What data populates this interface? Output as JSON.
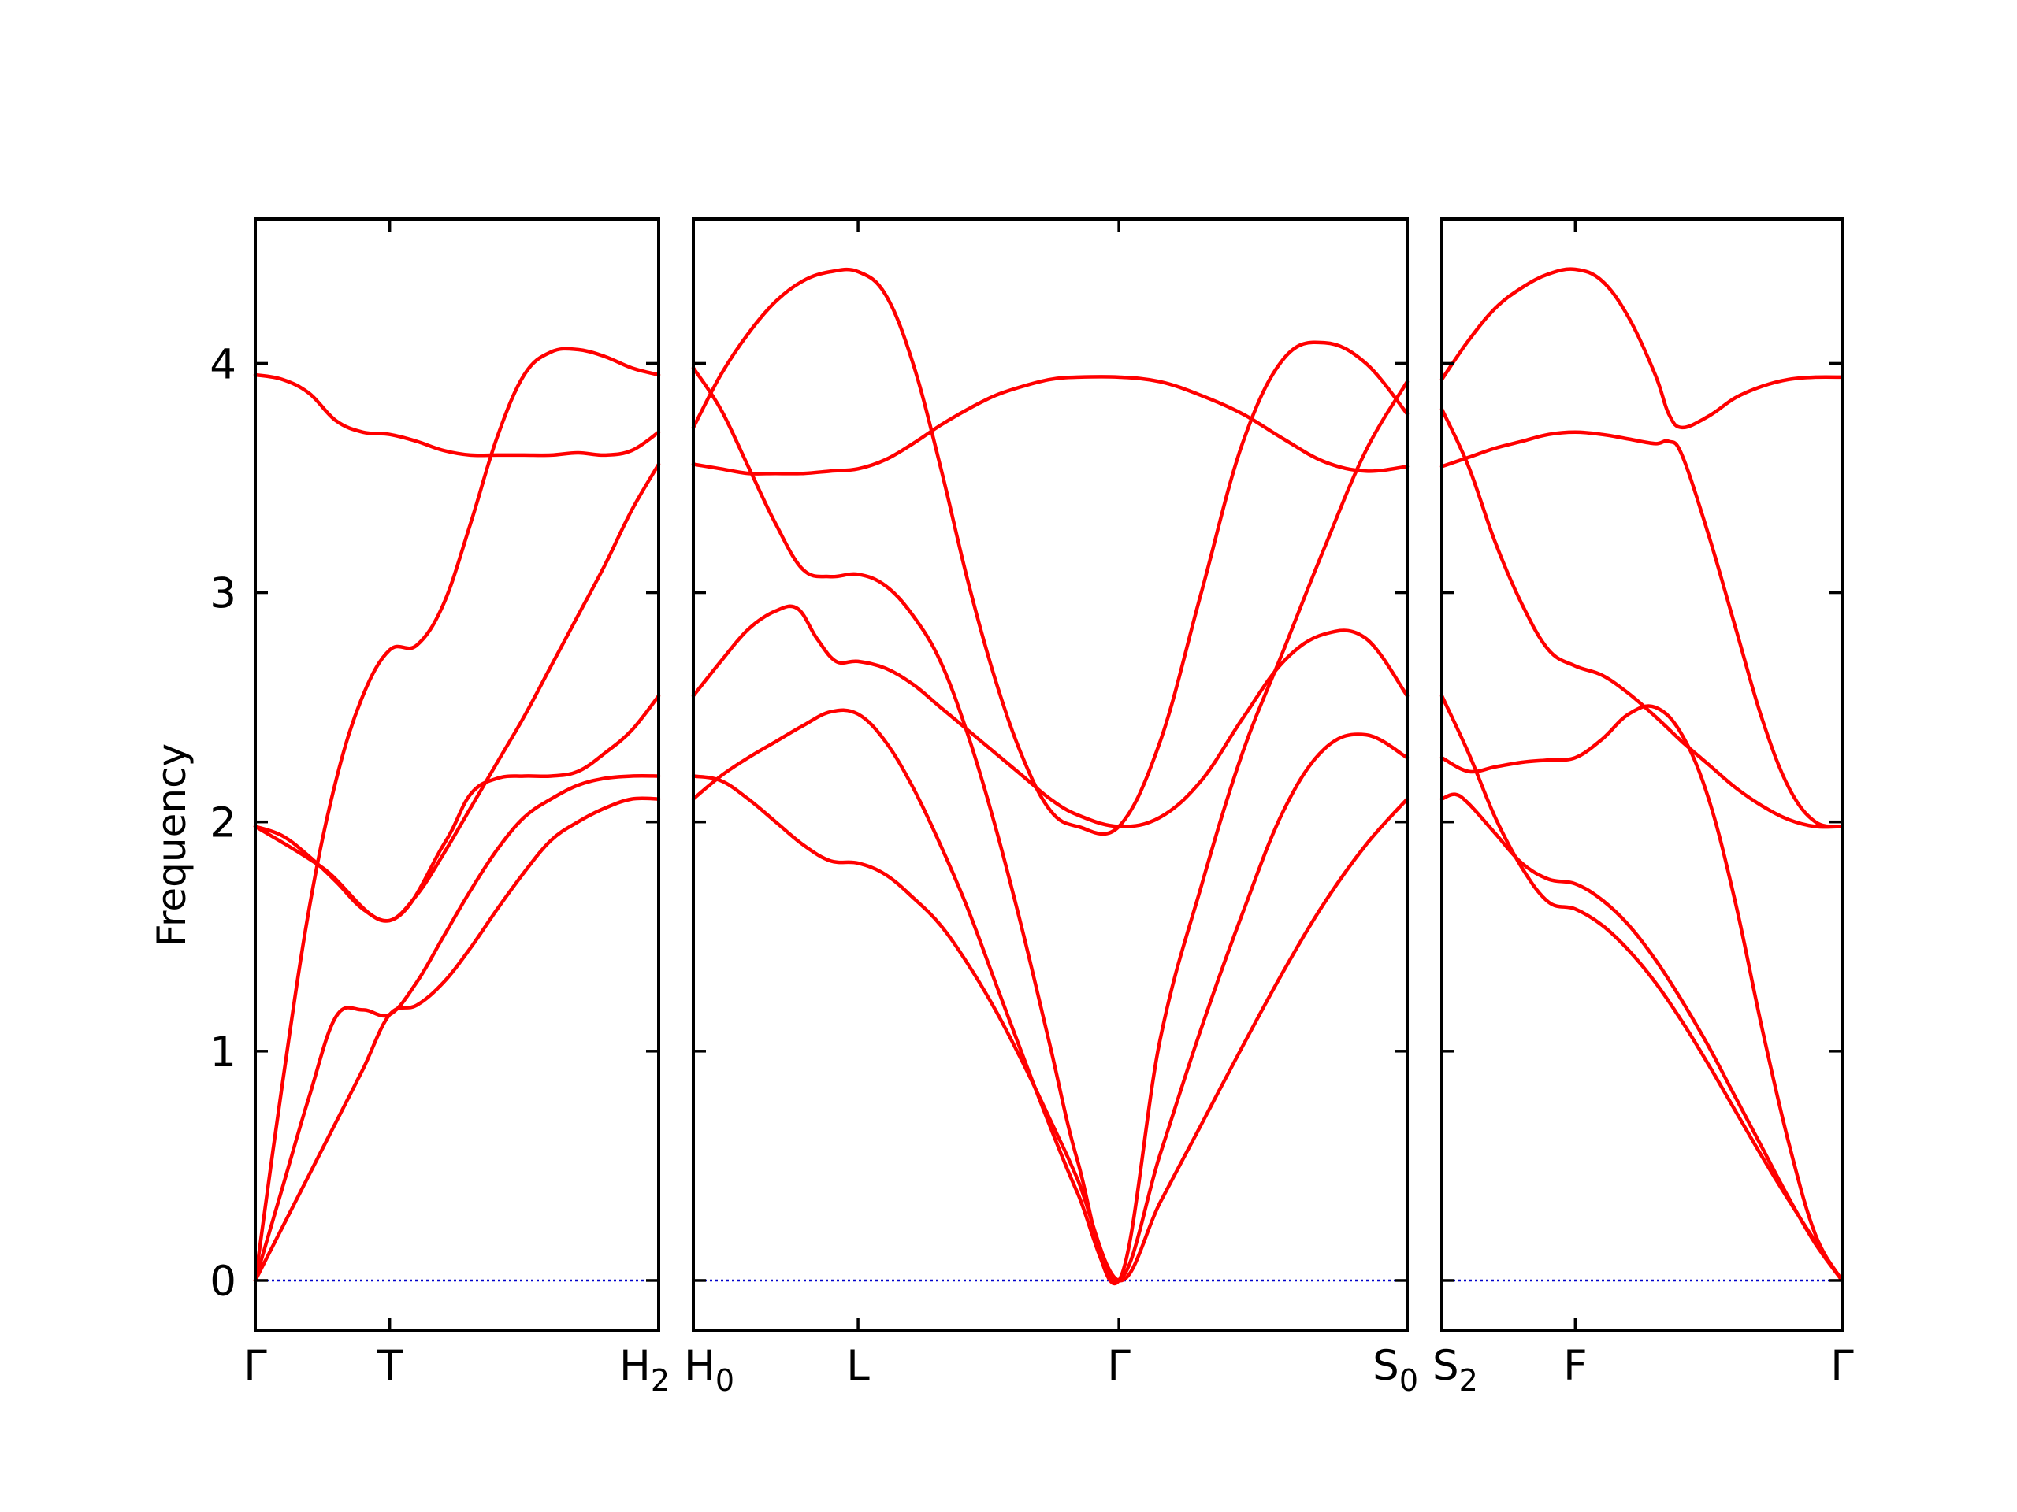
{
  "chart_data": {
    "type": "line",
    "ylabel": "Frequency",
    "ylim": [
      -0.22,
      4.63
    ],
    "yticks": [
      0,
      1,
      2,
      3,
      4
    ],
    "grid": false,
    "line_color": "#ff0000",
    "zero_line_color": "#0000cc",
    "panels": [
      {
        "name": "panel-1",
        "x_range": [
          0,
          1.5
        ],
        "xticks": [
          {
            "x": 0,
            "label": "Γ"
          },
          {
            "x": 0.5,
            "label": "T"
          },
          {
            "x": 1.5,
            "label": "H",
            "sub": "2"
          }
        ],
        "series": [
          {
            "x": [
              0,
              0.1,
              0.2,
              0.3,
              0.4,
              0.5,
              0.6,
              0.7,
              0.8,
              0.9,
              1.0,
              1.1,
              1.2,
              1.3,
              1.4,
              1.5
            ],
            "y": [
              0,
              0.23,
              0.46,
              0.69,
              0.92,
              1.16,
              1.2,
              1.3,
              1.45,
              1.62,
              1.78,
              1.92,
              2.0,
              2.06,
              2.1,
              2.1
            ]
          },
          {
            "x": [
              0,
              0.1,
              0.2,
              0.3,
              0.4,
              0.5,
              0.6,
              0.7,
              0.8,
              0.9,
              1.0,
              1.1,
              1.2,
              1.3,
              1.4,
              1.5
            ],
            "y": [
              0,
              0.4,
              0.8,
              1.15,
              1.18,
              1.16,
              1.3,
              1.5,
              1.7,
              1.88,
              2.02,
              2.1,
              2.16,
              2.19,
              2.2,
              2.2
            ]
          },
          {
            "x": [
              0,
              0.1,
              0.2,
              0.3,
              0.4,
              0.5,
              0.6,
              0.7,
              0.8,
              0.9,
              1.0,
              1.1,
              1.2,
              1.3,
              1.4,
              1.5
            ],
            "y": [
              1.98,
              1.94,
              1.85,
              1.74,
              1.62,
              1.57,
              1.68,
              1.86,
              2.06,
              2.26,
              2.46,
              2.68,
              2.9,
              3.12,
              3.36,
              3.56
            ]
          },
          {
            "x": [
              0,
              0.1,
              0.2,
              0.3,
              0.4,
              0.5,
              0.6,
              0.7,
              0.8,
              0.9,
              1.0,
              1.1,
              1.2,
              1.3,
              1.4,
              1.5
            ],
            "y": [
              0,
              0.85,
              1.62,
              2.18,
              2.55,
              2.75,
              2.77,
              2.95,
              3.3,
              3.68,
              3.95,
              4.05,
              4.06,
              4.03,
              3.98,
              3.95
            ]
          },
          {
            "x": [
              0,
              0.1,
              0.2,
              0.3,
              0.4,
              0.5,
              0.6,
              0.7,
              0.8,
              0.9,
              1.0,
              1.1,
              1.2,
              1.3,
              1.4,
              1.5
            ],
            "y": [
              3.95,
              3.93,
              3.87,
              3.75,
              3.7,
              3.69,
              3.66,
              3.62,
              3.6,
              3.6,
              3.6,
              3.6,
              3.61,
              3.6,
              3.62,
              3.7
            ]
          },
          {
            "x": [
              0,
              0.25,
              0.5,
              0.7,
              0.8,
              0.9,
              1.0,
              1.1,
              1.2,
              1.3,
              1.4,
              1.5
            ],
            "y": [
              1.98,
              1.8,
              1.57,
              1.9,
              2.12,
              2.19,
              2.2,
              2.2,
              2.22,
              2.3,
              2.4,
              2.55
            ]
          }
        ]
      },
      {
        "name": "panel-2",
        "x_range": [
          0,
          2.6
        ],
        "xticks": [
          {
            "x": 0,
            "label": "H",
            "sub": "0"
          },
          {
            "x": 0.6,
            "label": "L"
          },
          {
            "x": 1.55,
            "label": "Γ"
          },
          {
            "x": 2.6,
            "label": "S",
            "sub": "0"
          }
        ],
        "series": [
          {
            "x": [
              0,
              0.1,
              0.2,
              0.3,
              0.4,
              0.5,
              0.6,
              0.7,
              0.8,
              0.9,
              1.0,
              1.1,
              1.2,
              1.3,
              1.4,
              1.55,
              1.7,
              1.85,
              2.0,
              2.15,
              2.3,
              2.45,
              2.6
            ],
            "y": [
              2.2,
              2.18,
              2.1,
              2.0,
              1.9,
              1.83,
              1.82,
              1.77,
              1.67,
              1.55,
              1.38,
              1.18,
              0.95,
              0.7,
              0.44,
              0,
              0.34,
              0.68,
              1.02,
              1.35,
              1.65,
              1.9,
              2.1
            ]
          },
          {
            "x": [
              0,
              0.1,
              0.2,
              0.3,
              0.4,
              0.5,
              0.6,
              0.7,
              0.8,
              0.9,
              1.0,
              1.1,
              1.2,
              1.3,
              1.4,
              1.55,
              1.7,
              1.85,
              2.0,
              2.15,
              2.3,
              2.45,
              2.6
            ],
            "y": [
              2.1,
              2.2,
              2.28,
              2.35,
              2.42,
              2.48,
              2.47,
              2.35,
              2.15,
              1.9,
              1.62,
              1.3,
              0.98,
              0.67,
              0.38,
              0,
              0.55,
              1.1,
              1.6,
              2.05,
              2.32,
              2.38,
              2.28
            ]
          },
          {
            "x": [
              0,
              0.1,
              0.2,
              0.3,
              0.38,
              0.45,
              0.52,
              0.6,
              0.7,
              0.8,
              0.9,
              1.0,
              1.1,
              1.2,
              1.3,
              1.4,
              1.55,
              1.7,
              1.85,
              2.0,
              2.15,
              2.3,
              2.45,
              2.6
            ],
            "y": [
              2.55,
              2.7,
              2.84,
              2.92,
              2.93,
              2.8,
              2.7,
              2.7,
              2.67,
              2.6,
              2.5,
              2.4,
              2.3,
              2.2,
              2.1,
              2.03,
              1.98,
              2.02,
              2.18,
              2.45,
              2.7,
              2.82,
              2.8,
              2.55
            ]
          },
          {
            "x": [
              0,
              0.1,
              0.2,
              0.3,
              0.4,
              0.5,
              0.6,
              0.7,
              0.8,
              0.9,
              1.0,
              1.1,
              1.2,
              1.3,
              1.4,
              1.55,
              1.7,
              1.85,
              2.0,
              2.15,
              2.3,
              2.45,
              2.6
            ],
            "y": [
              3.98,
              3.8,
              3.55,
              3.3,
              3.1,
              3.07,
              3.08,
              3.03,
              2.9,
              2.7,
              2.38,
              1.98,
              1.52,
              1.02,
              0.52,
              0,
              1.05,
              1.72,
              2.3,
              2.75,
              3.2,
              3.62,
              3.92
            ]
          },
          {
            "x": [
              0,
              0.1,
              0.2,
              0.3,
              0.4,
              0.5,
              0.6,
              0.7,
              0.8,
              0.9,
              1.0,
              1.1,
              1.2,
              1.3,
              1.4,
              1.55,
              1.7,
              1.85,
              2.0,
              2.15,
              2.3,
              2.45,
              2.6
            ],
            "y": [
              3.72,
              3.95,
              4.13,
              4.27,
              4.36,
              4.4,
              4.4,
              4.3,
              4.0,
              3.55,
              3.05,
              2.62,
              2.28,
              2.05,
              1.98,
              1.98,
              2.35,
              3.0,
              3.65,
              4.02,
              4.09,
              4.0,
              3.78
            ]
          },
          {
            "x": [
              0,
              0.1,
              0.2,
              0.3,
              0.4,
              0.5,
              0.6,
              0.7,
              0.8,
              0.9,
              1.0,
              1.1,
              1.2,
              1.3,
              1.4,
              1.55,
              1.7,
              1.85,
              2.0,
              2.15,
              2.3,
              2.45,
              2.6
            ],
            "y": [
              3.56,
              3.54,
              3.52,
              3.52,
              3.52,
              3.53,
              3.54,
              3.58,
              3.65,
              3.73,
              3.8,
              3.86,
              3.9,
              3.93,
              3.94,
              3.94,
              3.92,
              3.86,
              3.78,
              3.67,
              3.57,
              3.53,
              3.55
            ]
          }
        ]
      },
      {
        "name": "panel-3",
        "x_range": [
          0,
          1.5
        ],
        "xticks": [
          {
            "x": 0,
            "label": "S",
            "sub": "2"
          },
          {
            "x": 0.5,
            "label": "F"
          },
          {
            "x": 1.5,
            "label": "Γ"
          }
        ],
        "series": [
          {
            "x": [
              0,
              0.05,
              0.1,
              0.2,
              0.3,
              0.4,
              0.5,
              0.6,
              0.7,
              0.8,
              0.9,
              1.0,
              1.1,
              1.2,
              1.3,
              1.4,
              1.5
            ],
            "y": [
              2.1,
              2.12,
              2.08,
              1.95,
              1.82,
              1.75,
              1.73,
              1.66,
              1.55,
              1.4,
              1.22,
              1.02,
              0.8,
              0.58,
              0.36,
              0.16,
              0
            ]
          },
          {
            "x": [
              0,
              0.1,
              0.2,
              0.3,
              0.4,
              0.5,
              0.6,
              0.7,
              0.8,
              0.9,
              1.0,
              1.1,
              1.2,
              1.3,
              1.4,
              1.5
            ],
            "y": [
              2.55,
              2.3,
              2.02,
              1.8,
              1.65,
              1.62,
              1.55,
              1.44,
              1.3,
              1.13,
              0.94,
              0.74,
              0.54,
              0.35,
              0.17,
              0
            ]
          },
          {
            "x": [
              0,
              0.1,
              0.2,
              0.3,
              0.4,
              0.5,
              0.6,
              0.7,
              0.8,
              0.9,
              1.0,
              1.1,
              1.2,
              1.3,
              1.4,
              1.5
            ],
            "y": [
              2.28,
              2.22,
              2.24,
              2.26,
              2.27,
              2.28,
              2.36,
              2.47,
              2.5,
              2.38,
              2.1,
              1.65,
              1.1,
              0.6,
              0.2,
              0
            ]
          },
          {
            "x": [
              0,
              0.1,
              0.2,
              0.3,
              0.4,
              0.5,
              0.6,
              0.7,
              0.8,
              0.9,
              1.0,
              1.1,
              1.2,
              1.3,
              1.4,
              1.5
            ],
            "y": [
              3.8,
              3.55,
              3.22,
              2.95,
              2.75,
              2.68,
              2.64,
              2.56,
              2.46,
              2.35,
              2.25,
              2.15,
              2.07,
              2.01,
              1.98,
              1.98
            ]
          },
          {
            "x": [
              0,
              0.1,
              0.2,
              0.3,
              0.4,
              0.5,
              0.6,
              0.7,
              0.8,
              0.85,
              0.9,
              1.0,
              1.1,
              1.2,
              1.3,
              1.4,
              1.5
            ],
            "y": [
              3.55,
              3.59,
              3.63,
              3.66,
              3.69,
              3.7,
              3.69,
              3.67,
              3.65,
              3.66,
              3.6,
              3.25,
              2.85,
              2.45,
              2.15,
              2.0,
              1.98
            ]
          },
          {
            "x": [
              0,
              0.1,
              0.2,
              0.3,
              0.4,
              0.5,
              0.6,
              0.7,
              0.8,
              0.85,
              0.9,
              1.0,
              1.1,
              1.2,
              1.3,
              1.4,
              1.5
            ],
            "y": [
              3.93,
              4.1,
              4.24,
              4.33,
              4.39,
              4.41,
              4.36,
              4.2,
              3.95,
              3.78,
              3.72,
              3.77,
              3.85,
              3.9,
              3.93,
              3.94,
              3.94
            ]
          }
        ]
      }
    ]
  }
}
